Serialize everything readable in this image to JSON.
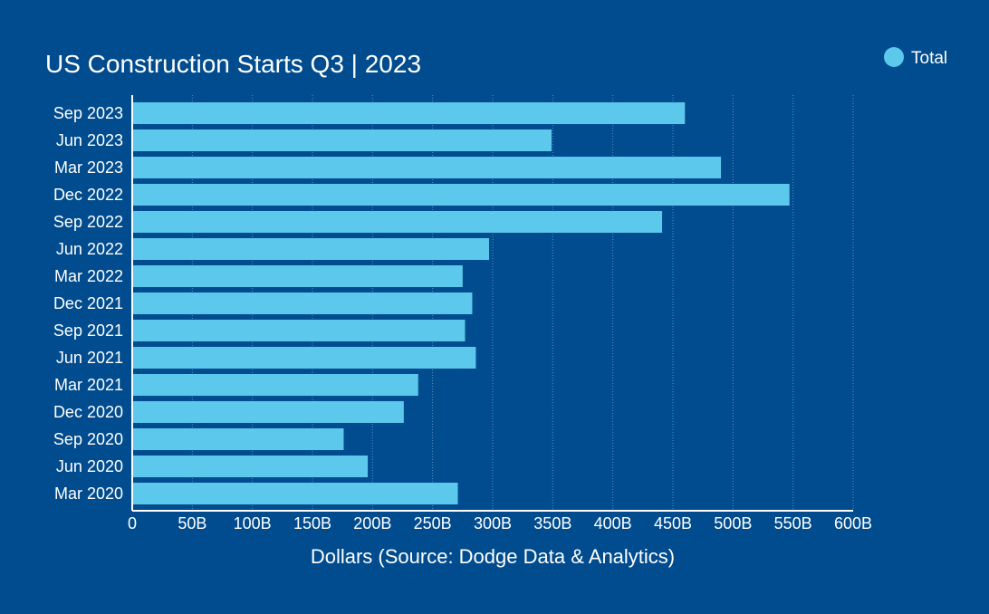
{
  "chart_data": {
    "type": "bar",
    "orientation": "horizontal",
    "title": "US Construction Starts Q3 | 2023",
    "xlabel": "Dollars (Source: Dodge Data & Analytics)",
    "ylabel": "",
    "xlim": [
      0,
      600
    ],
    "x_ticks": [
      0,
      50,
      100,
      150,
      200,
      250,
      300,
      350,
      400,
      450,
      500,
      550,
      600
    ],
    "x_tick_labels": [
      "0",
      "50B",
      "100B",
      "150B",
      "200B",
      "250B",
      "300B",
      "350B",
      "400B",
      "450B",
      "500B",
      "550B",
      "600B"
    ],
    "grid": true,
    "legend_position": "top-right",
    "categories": [
      "Sep 2023",
      "Jun 2023",
      "Mar 2023",
      "Dec 2022",
      "Sep 2022",
      "Jun 2022",
      "Mar 2022",
      "Dec 2021",
      "Sep 2021",
      "Jun 2021",
      "Mar 2021",
      "Dec 2020",
      "Sep 2020",
      "Jun 2020",
      "Mar 2020"
    ],
    "series": [
      {
        "name": "Total",
        "color": "#5bc8ec",
        "values": [
          460,
          349,
          490,
          547,
          441,
          297,
          275,
          283,
          277,
          286,
          238,
          226,
          176,
          196,
          271
        ]
      }
    ]
  }
}
